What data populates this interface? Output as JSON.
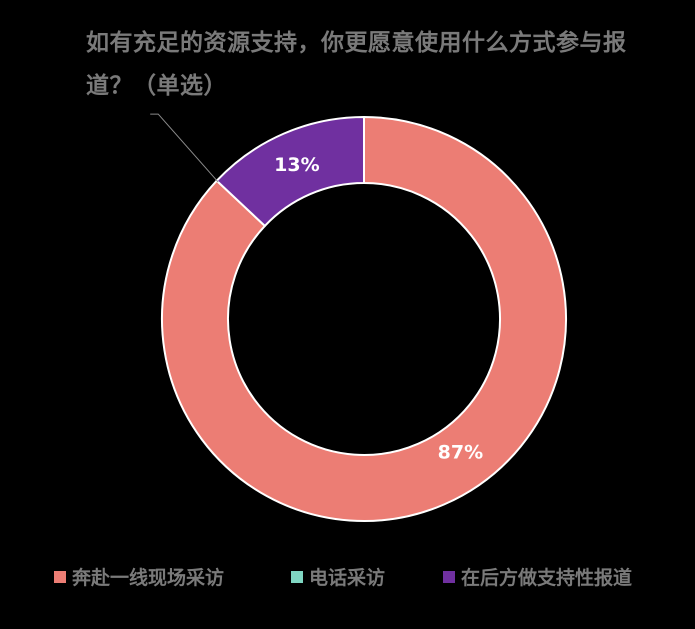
{
  "chart_data": {
    "type": "pie",
    "title": "如有充足的资源支持，你更愿意使用什么方式参与报道？（单选）",
    "categories": [
      "奔赴一线现场采访",
      "电话采访",
      "在后方做支持性报道"
    ],
    "values": [
      87,
      0,
      13
    ],
    "data_labels": [
      "87%",
      "",
      "13%"
    ],
    "colors": [
      "#ec7d74",
      "#7fd6c2",
      "#7030a0"
    ],
    "legend_position": "bottom",
    "donut": true
  },
  "colors": {
    "background": "#000000",
    "text": "#7a7a7a",
    "slice_border": "#ffffff",
    "label_text": "#ffffff"
  }
}
